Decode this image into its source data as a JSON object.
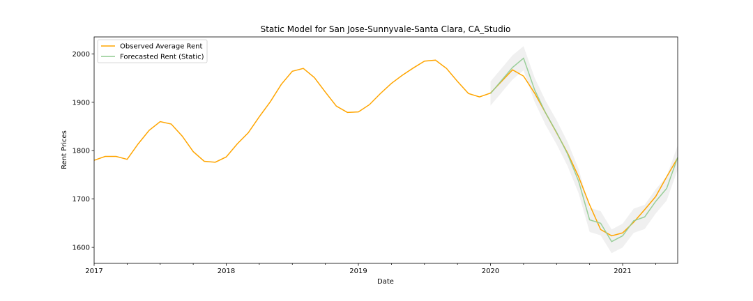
{
  "chart_data": {
    "type": "line",
    "title": "Static Model for San Jose-Sunnyvale-Santa Clara, CA_Studio",
    "xlabel": "Date",
    "ylabel": "Rent Prices",
    "xlim": [
      "2017-01",
      "2021-06"
    ],
    "ylim": [
      1567,
      2035
    ],
    "x_ticks": [
      "2017",
      "2018",
      "2019",
      "2020",
      "2021"
    ],
    "y_ticks": [
      1600,
      1700,
      1800,
      1900,
      2000
    ],
    "grid": false,
    "legend_position": "top-left",
    "series": [
      {
        "name": "Observed Average Rent",
        "color": "#ffa500",
        "x": [
          "2017-01",
          "2017-02",
          "2017-03",
          "2017-04",
          "2017-05",
          "2017-06",
          "2017-07",
          "2017-08",
          "2017-09",
          "2017-10",
          "2017-11",
          "2017-12",
          "2018-01",
          "2018-02",
          "2018-03",
          "2018-04",
          "2018-05",
          "2018-06",
          "2018-07",
          "2018-08",
          "2018-09",
          "2018-10",
          "2018-11",
          "2018-12",
          "2019-01",
          "2019-02",
          "2019-03",
          "2019-04",
          "2019-05",
          "2019-06",
          "2019-07",
          "2019-08",
          "2019-09",
          "2019-10",
          "2019-11",
          "2019-12",
          "2020-01",
          "2020-02",
          "2020-03",
          "2020-04",
          "2020-05",
          "2020-06",
          "2020-07",
          "2020-08",
          "2020-09",
          "2020-10",
          "2020-11",
          "2020-12",
          "2021-01",
          "2021-02",
          "2021-03",
          "2021-04",
          "2021-05",
          "2021-06"
        ],
        "values": [
          1780,
          1788,
          1788,
          1782,
          1814,
          1842,
          1860,
          1855,
          1830,
          1798,
          1778,
          1776,
          1787,
          1814,
          1837,
          1870,
          1901,
          1937,
          1964,
          1970,
          1951,
          1921,
          1892,
          1879,
          1880,
          1895,
          1918,
          1939,
          1956,
          1971,
          1985,
          1987,
          1970,
          1943,
          1918,
          1911,
          1919,
          1943,
          1967,
          1954,
          1919,
          1878,
          1837,
          1795,
          1746,
          1688,
          1637,
          1624,
          1630,
          1652,
          1678,
          1705,
          1746,
          1785
        ]
      },
      {
        "name": "Forecasted Rent (Static)",
        "color": "#8fca8f",
        "x": [
          "2020-01",
          "2020-02",
          "2020-03",
          "2020-04",
          "2020-05",
          "2020-06",
          "2020-07",
          "2020-08",
          "2020-09",
          "2020-10",
          "2020-11",
          "2020-12",
          "2021-01",
          "2021-02",
          "2021-03",
          "2021-04",
          "2021-05",
          "2021-06"
        ],
        "values": [
          1918,
          1945,
          1972,
          1991,
          1926,
          1878,
          1838,
          1793,
          1737,
          1657,
          1650,
          1612,
          1624,
          1655,
          1663,
          1695,
          1722,
          1786
        ],
        "ci_lower": [
          1893,
          1920,
          1947,
          1966,
          1901,
          1853,
          1813,
          1768,
          1712,
          1632,
          1625,
          1588,
          1600,
          1630,
          1638,
          1670,
          1697,
          1761
        ],
        "ci_upper": [
          1943,
          1970,
          1997,
          2016,
          1951,
          1903,
          1863,
          1818,
          1762,
          1682,
          1675,
          1637,
          1649,
          1680,
          1688,
          1720,
          1747,
          1811
        ]
      }
    ]
  }
}
